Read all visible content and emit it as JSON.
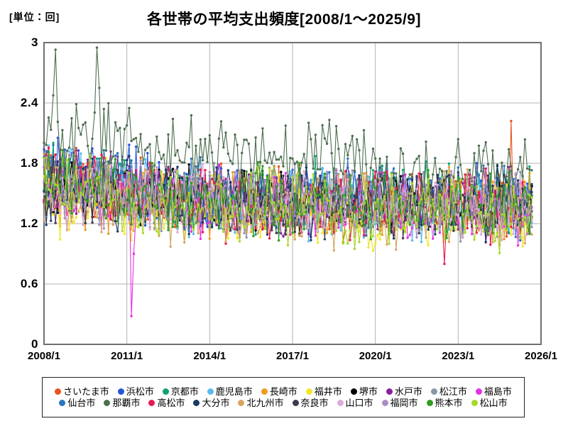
{
  "page": {
    "unit_label": "[単位：回]",
    "title": "各世帯の平均支出頻度[2008/1～2025/9]"
  },
  "chart_data": {
    "type": "line",
    "title": "各世帯の平均支出頻度[2008/1～2025/9]",
    "unit": "回",
    "grid": true,
    "legend_position": "bottom",
    "x_axis": {
      "start": "2008/1",
      "end_of_data": "2025/9",
      "tick_labels": [
        "2008/1",
        "2011/1",
        "2014/1",
        "2017/1",
        "2020/1",
        "2023/1",
        "2026/1"
      ],
      "tick_months": [
        0,
        36,
        72,
        108,
        144,
        180,
        216
      ],
      "grid_months": [
        36,
        72,
        108,
        144,
        180
      ],
      "axis_months": 216,
      "data_months": 213,
      "points_per_year": 12
    },
    "y_axis": {
      "min": 0,
      "max": 3,
      "tick_values": [
        0,
        0.6,
        1.2,
        1.8,
        2.4,
        3
      ],
      "tick_labels": [
        "0",
        "0.6",
        "1.2",
        "1.8",
        "2.4",
        "3"
      ],
      "grid_values": [
        0.6,
        1.2,
        1.8,
        2.4
      ]
    },
    "band_summary": "ほとんどの都市は月次で約0.9〜1.9の間で激しく振動し、平均約1.45、期間を通じてわずかに低下傾向",
    "key_features": [
      {
        "series": "那覇市",
        "observation": "全期間で最も高い系列。2008〜2010年に約2.9〜3.0のピーク、その後も1.5〜2.4で推移"
      },
      {
        "series": "福島市",
        "observation": "2011/3に約0.28まで急落し翌月以降回復"
      },
      {
        "series": "さいたま市",
        "observation": "2024年末頃に約2.2のスパイク"
      },
      {
        "series": "高松市",
        "observation": "2022年中頃に約0.8まで低下"
      }
    ],
    "series": [
      {
        "name": "さいたま市",
        "color": "#E8541F",
        "base": 1.47,
        "amp": 0.3,
        "trend": -0.1,
        "early": 0.15,
        "seed": 11,
        "events": {
          "203": 2.22
        }
      },
      {
        "name": "浜松市",
        "color": "#2256D8",
        "base": 1.5,
        "amp": 0.3,
        "trend": -0.08,
        "early": 0.28,
        "seed": 12,
        "events": {}
      },
      {
        "name": "京都市",
        "color": "#0DA373",
        "base": 1.52,
        "amp": 0.3,
        "trend": -0.08,
        "early": 0.18,
        "seed": 13,
        "events": {}
      },
      {
        "name": "鹿児島市",
        "color": "#59BBEE",
        "base": 1.45,
        "amp": 0.3,
        "trend": -0.1,
        "early": 0.22,
        "seed": 14,
        "events": {}
      },
      {
        "name": "長崎市",
        "color": "#EE9C1C",
        "base": 1.45,
        "amp": 0.32,
        "trend": -0.1,
        "early": 0.1,
        "seed": 15,
        "events": {}
      },
      {
        "name": "福井市",
        "color": "#F2E726",
        "base": 1.38,
        "amp": 0.33,
        "trend": -0.1,
        "early": 0.1,
        "seed": 16,
        "events": {}
      },
      {
        "name": "堺市",
        "color": "#000000",
        "base": 1.46,
        "amp": 0.28,
        "trend": -0.08,
        "early": 0.12,
        "seed": 17,
        "events": {}
      },
      {
        "name": "水戸市",
        "color": "#8A1F9E",
        "base": 1.47,
        "amp": 0.3,
        "trend": -0.08,
        "early": 0.2,
        "seed": 18,
        "events": {}
      },
      {
        "name": "松江市",
        "color": "#8898A8",
        "base": 1.48,
        "amp": 0.3,
        "trend": -0.1,
        "early": 0.18,
        "seed": 19,
        "events": {}
      },
      {
        "name": "福島市",
        "color": "#E531E5",
        "base": 1.46,
        "amp": 0.3,
        "trend": -0.1,
        "early": 0.15,
        "seed": 20,
        "events": {
          "38": 0.28,
          "39": 0.9
        }
      },
      {
        "name": "仙台市",
        "color": "#2E76C0",
        "base": 1.5,
        "amp": 0.3,
        "trend": -0.06,
        "early": 0.2,
        "seed": 21,
        "events": {}
      },
      {
        "name": "那覇市",
        "color": "#4E6F50",
        "base": 2.12,
        "amp": 0.4,
        "trend": 0.0,
        "early": 0.0,
        "seed": 22,
        "phases": [
          {
            "from": 0,
            "base": 2.12,
            "amp": 0.4
          },
          {
            "from": 42,
            "base": 1.88,
            "amp": 0.32
          },
          {
            "from": 140,
            "base": 1.72,
            "amp": 0.28
          }
        ],
        "max": 2.97,
        "events": {
          "5": 2.93,
          "23": 2.95,
          "24": 2.55
        }
      },
      {
        "name": "高松市",
        "color": "#E81A52",
        "base": 1.44,
        "amp": 0.32,
        "trend": -0.1,
        "early": 0.15,
        "seed": 23,
        "events": {
          "174": 0.8
        }
      },
      {
        "name": "大分市",
        "color": "#1A3A66",
        "base": 1.46,
        "amp": 0.3,
        "trend": -0.08,
        "early": 0.1,
        "seed": 24,
        "events": {}
      },
      {
        "name": "北九州市",
        "color": "#D5A760",
        "base": 1.42,
        "amp": 0.33,
        "trend": -0.12,
        "early": 0.1,
        "seed": 25,
        "events": {}
      },
      {
        "name": "奈良市",
        "color": "#3B3B4D",
        "base": 1.45,
        "amp": 0.28,
        "trend": -0.08,
        "early": 0.1,
        "seed": 26,
        "events": {}
      },
      {
        "name": "山口市",
        "color": "#DCABDC",
        "base": 1.44,
        "amp": 0.3,
        "trend": -0.1,
        "early": 0.12,
        "seed": 27,
        "events": {}
      },
      {
        "name": "福岡市",
        "color": "#AB8EC4",
        "base": 1.46,
        "amp": 0.28,
        "trend": -0.08,
        "early": 0.1,
        "seed": 28,
        "events": {}
      },
      {
        "name": "熊本市",
        "color": "#2F9E1E",
        "base": 1.46,
        "amp": 0.32,
        "trend": -0.1,
        "early": 0.1,
        "seed": 29,
        "events": {}
      },
      {
        "name": "松山市",
        "color": "#A8D828",
        "base": 1.42,
        "amp": 0.33,
        "trend": -0.1,
        "early": 0.1,
        "seed": 30,
        "events": {}
      }
    ],
    "style": {
      "plot_border_color": "#707070",
      "grid_color": "#b3b3b3",
      "background": "#ffffff",
      "marker_radius": 1.7,
      "line_width": 1.1
    }
  }
}
